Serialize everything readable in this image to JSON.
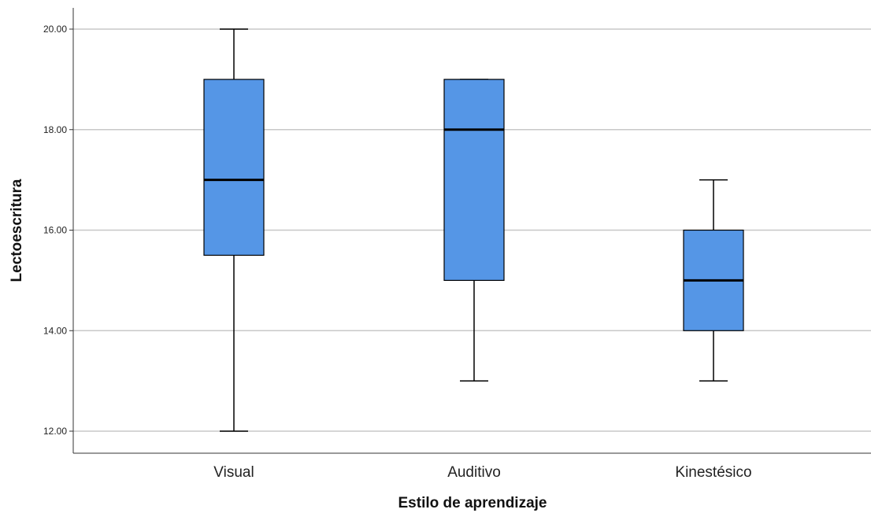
{
  "chart_data": {
    "type": "boxplot",
    "xlabel": "Estilo de aprendizaje",
    "ylabel": "Lectoescritura",
    "ylim": [
      11.6,
      20.4
    ],
    "yticks": [
      12,
      14,
      16,
      18,
      20
    ],
    "ytick_labels": [
      "12.00",
      "14.00",
      "16.00",
      "18.00",
      "20.00"
    ],
    "grid": "horizontal",
    "box_color": "#5596e6",
    "categories": [
      "Visual",
      "Auditivo",
      "Kinestésico"
    ],
    "boxes": [
      {
        "category": "Visual",
        "min": 12,
        "q1": 15.5,
        "median": 17,
        "q3": 19,
        "max": 20
      },
      {
        "category": "Auditivo",
        "min": 13,
        "q1": 15,
        "median": 18,
        "q3": 19,
        "max": 19
      },
      {
        "category": "Kinestésico",
        "min": 13,
        "q1": 14,
        "median": 15,
        "q3": 16,
        "max": 17
      }
    ]
  }
}
